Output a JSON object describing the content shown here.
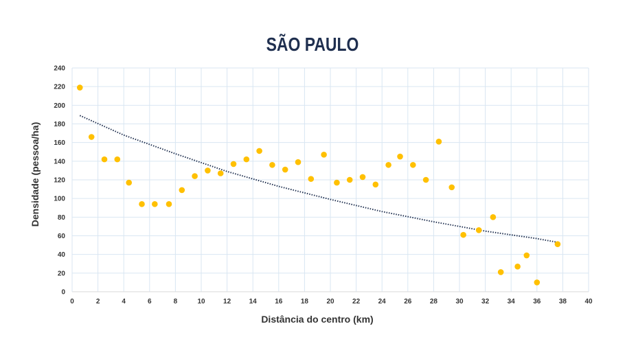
{
  "chart_data": {
    "type": "scatter",
    "title": "SÃO PAULO",
    "xlabel": "Distância do centro (km)",
    "ylabel": "Densidade (pessoa/ha)",
    "xlim": [
      0,
      40
    ],
    "ylim": [
      0,
      240
    ],
    "x_ticks": [
      0,
      2,
      4,
      6,
      8,
      10,
      12,
      14,
      16,
      18,
      20,
      22,
      24,
      26,
      28,
      30,
      32,
      34,
      36,
      38,
      40
    ],
    "y_ticks": [
      0,
      20,
      40,
      60,
      80,
      100,
      120,
      140,
      160,
      180,
      200,
      220,
      240
    ],
    "grid": true,
    "legend": "none",
    "point_color": "#FFC000",
    "trendline_color": "#1F2F4F",
    "series": [
      {
        "x": [
          0.6,
          1.5,
          2.5,
          3.5,
          4.4,
          5.4,
          6.4,
          7.5,
          8.5,
          9.5,
          10.5,
          11.5,
          12.5,
          13.5,
          14.5,
          15.5,
          16.5,
          17.5,
          18.5,
          19.5,
          20.5,
          21.5,
          22.5,
          23.5,
          24.5,
          25.4,
          26.4,
          27.4,
          28.4,
          29.4,
          30.3,
          31.5,
          32.6,
          33.2,
          34.5,
          35.2,
          36.0,
          37.6
        ],
        "y": [
          219,
          166,
          142,
          142,
          117,
          94,
          94,
          94,
          109,
          124,
          130,
          127,
          137,
          142,
          151,
          136,
          131,
          139,
          121,
          147,
          117,
          120,
          123,
          115,
          136,
          145,
          136,
          120,
          161,
          112,
          61,
          66,
          80,
          21,
          27,
          39,
          10,
          51
        ]
      }
    ],
    "trendline": {
      "type": "exponential",
      "x": [
        0.6,
        4,
        8,
        12,
        16,
        20,
        24,
        28,
        32,
        36,
        37.6
      ],
      "y": [
        189,
        168,
        148,
        129,
        113,
        99,
        86,
        75,
        65,
        57,
        53
      ]
    }
  }
}
